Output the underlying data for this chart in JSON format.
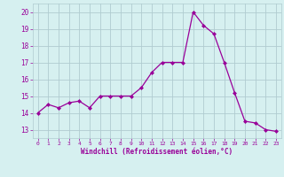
{
  "x": [
    0,
    1,
    2,
    3,
    4,
    5,
    6,
    7,
    8,
    9,
    10,
    11,
    12,
    13,
    14,
    15,
    16,
    17,
    18,
    19,
    20,
    21,
    22,
    23
  ],
  "y": [
    14.0,
    14.5,
    14.3,
    14.6,
    14.7,
    14.3,
    15.0,
    15.0,
    15.0,
    15.0,
    15.5,
    16.4,
    17.0,
    17.0,
    17.0,
    20.0,
    19.2,
    18.7,
    17.0,
    15.2,
    13.5,
    13.4,
    13.0,
    12.9
  ],
  "line_color": "#990099",
  "marker": "D",
  "marker_size": 2,
  "bg_color": "#d6f0f0",
  "grid_color": "#b0ccd0",
  "xlabel": "Windchill (Refroidissement éolien,°C)",
  "yticks": [
    13,
    14,
    15,
    16,
    17,
    18,
    19,
    20
  ],
  "ylim": [
    12.5,
    20.5
  ],
  "xlim": [
    -0.5,
    23.5
  ]
}
